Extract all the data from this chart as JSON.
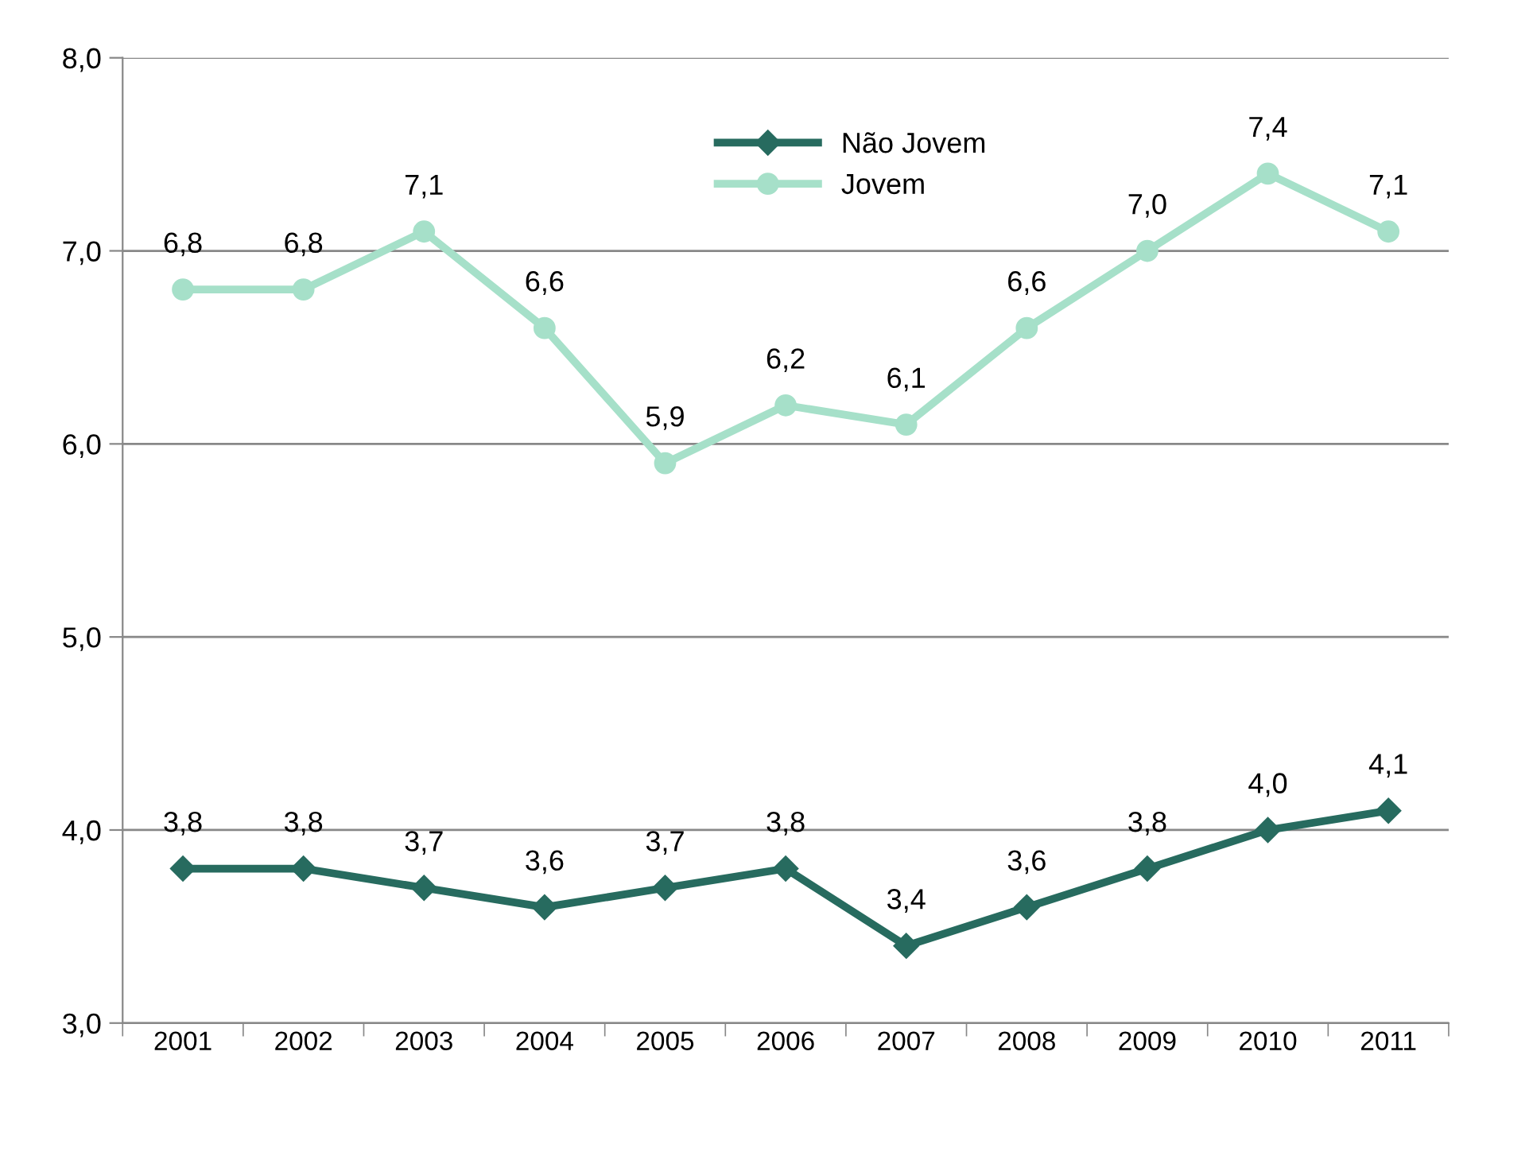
{
  "chart_data": {
    "type": "line",
    "categories": [
      "2001",
      "2002",
      "2003",
      "2004",
      "2005",
      "2006",
      "2007",
      "2008",
      "2009",
      "2010",
      "2011"
    ],
    "series": [
      {
        "name": "Não Jovem",
        "color": "#276b5f",
        "marker": "diamond",
        "values": [
          3.8,
          3.8,
          3.7,
          3.6,
          3.7,
          3.8,
          3.4,
          3.6,
          3.8,
          4.0,
          4.1
        ],
        "value_labels": [
          "3,8",
          "3,8",
          "3,7",
          "3,6",
          "3,7",
          "3,8",
          "3,4",
          "3,6",
          "3,8",
          "4,0",
          "4,1"
        ]
      },
      {
        "name": "Jovem",
        "color": "#a6e0c9",
        "marker": "circle",
        "values": [
          6.8,
          6.8,
          7.1,
          6.6,
          5.9,
          6.2,
          6.1,
          6.6,
          7.0,
          7.4,
          7.1
        ],
        "value_labels": [
          "6,8",
          "6,8",
          "7,1",
          "6,6",
          "5,9",
          "6,2",
          "6,1",
          "6,6",
          "7,0",
          "7,4",
          "7,1"
        ]
      }
    ],
    "ylim": [
      3,
      8
    ],
    "yticks": [
      {
        "value": 3,
        "label": "3,0"
      },
      {
        "value": 4,
        "label": "4,0"
      },
      {
        "value": 5,
        "label": "5,0"
      },
      {
        "value": 6,
        "label": "6,0"
      },
      {
        "value": 7,
        "label": "7,0"
      },
      {
        "value": 8,
        "label": "8,0"
      }
    ],
    "grid": "y",
    "legend": "top",
    "line_style": "solid"
  }
}
